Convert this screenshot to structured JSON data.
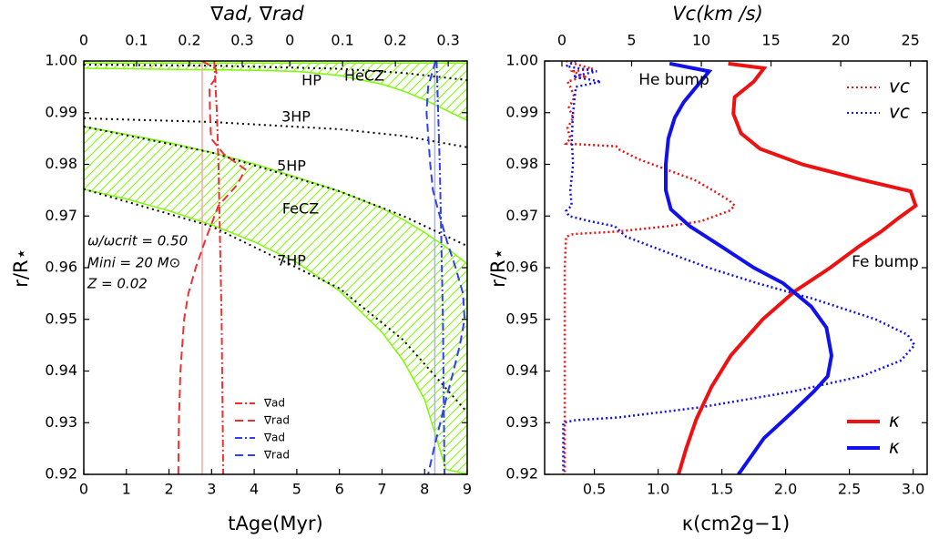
{
  "chart_data": [
    {
      "type": "profile",
      "xlabel": "tAge(Myr)",
      "x2label": "∇ad, ∇rad",
      "ylabel": "r/R⋆",
      "xlim": [
        0,
        9
      ],
      "xticks": [
        0,
        1,
        2,
        3,
        4,
        5,
        6,
        7,
        8,
        9
      ],
      "top_axes": [
        {
          "xlim": [
            0,
            0.39
          ],
          "xticks": [
            0,
            0.1,
            0.2,
            0.3
          ]
        },
        {
          "xlim": [
            0,
            0.336
          ],
          "xticks": [
            0,
            0.1,
            0.2,
            0.3
          ]
        }
      ],
      "ylim": [
        0.92,
        1
      ],
      "yticks": [
        0.92,
        0.93,
        0.94,
        0.95,
        0.96,
        0.97,
        0.98,
        0.99,
        {
          "value": 1,
          "label": "1.00"
        }
      ],
      "regions": [
        {
          "name": "HeCZ",
          "color": "#7cfc00",
          "t": [
            0,
            1,
            2,
            3,
            4,
            5,
            6,
            7,
            7.5,
            8,
            8.5,
            9
          ],
          "upper": [
            0.9996,
            0.9996,
            0.9996,
            0.9996,
            0.9996,
            0.9996,
            0.9996,
            0.9996,
            0.9996,
            0.9996,
            0.9996,
            0.9996
          ],
          "lower": [
            0.9986,
            0.9985,
            0.9984,
            0.9983,
            0.9982,
            0.998,
            0.9972,
            0.9955,
            0.9942,
            0.9925,
            0.9905,
            0.9885
          ]
        },
        {
          "name": "FeCZ",
          "color": "#7cfc00",
          "t": [
            0,
            1,
            2,
            3,
            4,
            5,
            6,
            7,
            7.5,
            8,
            8.5,
            9
          ],
          "upper": [
            0.9873,
            0.9858,
            0.9842,
            0.9823,
            0.9801,
            0.9775,
            0.9748,
            0.9715,
            0.9693,
            0.9668,
            0.964,
            0.9607
          ],
          "lower": [
            0.9752,
            0.9733,
            0.971,
            0.9683,
            0.965,
            0.961,
            0.9555,
            0.9475,
            0.942,
            0.9345,
            0.921,
            0.92
          ]
        }
      ],
      "scale_heights": [
        {
          "name": "HP",
          "t": [
            0,
            3,
            6,
            7.5,
            9
          ],
          "values": [
            0.9993,
            0.9991,
            0.9985,
            0.9977,
            0.9963
          ]
        },
        {
          "name": "3HP",
          "t": [
            0,
            3,
            6,
            7.5,
            9
          ],
          "values": [
            0.9889,
            0.9882,
            0.9868,
            0.9855,
            0.9833
          ]
        },
        {
          "name": "5HP",
          "t": [
            0,
            3,
            6,
            7.5,
            9
          ],
          "values": [
            0.9873,
            0.9823,
            0.9748,
            0.97,
            0.9642
          ]
        },
        {
          "name": "7HP",
          "t": [
            0,
            3,
            6,
            7.5,
            9
          ],
          "values": [
            0.9752,
            0.968,
            0.956,
            0.946,
            0.932
          ]
        }
      ],
      "age_lines": [
        {
          "color": "#f4a8a8",
          "value": 2.78
        },
        {
          "color": "#a8b0f4",
          "value": 8.24
        }
      ],
      "profiles": [
        {
          "name": "∇ad",
          "color": "#f03030",
          "style": "dashdot",
          "axis": "top1",
          "legend": "lower center",
          "r": [
            1,
            0.99,
            0.98,
            0.97,
            0.96,
            0.95,
            0.94,
            0.93,
            0.92
          ],
          "values": [
            0.247,
            0.252,
            0.255,
            0.257,
            0.259,
            0.261,
            0.262,
            0.263,
            0.264
          ]
        },
        {
          "name": "∇rad",
          "color": "#f03030",
          "style": "dashed",
          "axis": "top1",
          "legend": "lower center",
          "r": [
            1,
            0.9985,
            0.997,
            0.995,
            0.99,
            0.985,
            0.982,
            0.979,
            0.976,
            0.972,
            0.968,
            0.965,
            0.96,
            0.955,
            0.95,
            0.94,
            0.93,
            0.92
          ],
          "values": [
            0.224,
            0.25,
            0.252,
            0.238,
            0.239,
            0.241,
            0.265,
            0.306,
            0.29,
            0.255,
            0.24,
            0.229,
            0.212,
            0.198,
            0.19,
            0.183,
            0.18,
            0.179
          ]
        },
        {
          "name": "∇ad",
          "color": "#3040f0",
          "style": "dashdot",
          "axis": "top2",
          "legend": "lower center",
          "r": [
            1,
            0.99,
            0.98,
            0.97,
            0.96,
            0.95,
            0.94,
            0.93,
            0.92
          ],
          "values": [
            0.278,
            0.281,
            0.284,
            0.286,
            0.288,
            0.29,
            0.291,
            0.292,
            0.293
          ]
        },
        {
          "name": "∇rad",
          "color": "#3040f0",
          "style": "dashed",
          "axis": "top2",
          "legend": "lower center",
          "r": [
            1,
            0.995,
            0.99,
            0.98,
            0.975,
            0.97,
            0.965,
            0.96,
            0.955,
            0.95,
            0.945,
            0.94,
            0.935,
            0.93,
            0.925,
            0.92
          ],
          "values": [
            0.276,
            0.262,
            0.259,
            0.266,
            0.271,
            0.284,
            0.298,
            0.314,
            0.328,
            0.331,
            0.322,
            0.31,
            0.297,
            0.285,
            0.273,
            0.262
          ]
        }
      ],
      "annotations": [
        "ω/ωcrit = 0.50",
        "Mini = 20 M⊙",
        "Z = 0.02"
      ]
    },
    {
      "type": "profile",
      "xlabel": "κ(cm2g−1)",
      "x2label": "Vc(km /s)",
      "ylabel": "r/R⋆",
      "xlim": [
        0.11,
        3.11
      ],
      "xticks": [
        0.5,
        {
          "value": 1,
          "label": "1.0"
        },
        1.5,
        {
          "value": 2,
          "label": "2.0"
        },
        2.5,
        {
          "value": 3,
          "label": "3.0"
        }
      ],
      "top_axes": [
        {
          "xlim": [
            -1.24,
            26.2
          ],
          "xticks": [
            0,
            5,
            10,
            15,
            20,
            25
          ]
        }
      ],
      "ylim": [
        0.92,
        1
      ],
      "yticks": [
        0.92,
        0.93,
        0.94,
        0.95,
        0.96,
        0.97,
        0.98,
        0.99,
        {
          "value": 1,
          "label": "1.00"
        }
      ],
      "profiles": [
        {
          "name": "vc",
          "color": "#ee1111",
          "style": "dotted",
          "axis": "top1",
          "legend": "upper right",
          "r": [
            1,
            0.999,
            0.9985,
            0.998,
            0.997,
            0.996,
            0.995,
            0.993,
            0.991,
            0.989,
            0.987,
            0.985,
            0.984,
            0.9835,
            0.983,
            0.981,
            0.979,
            0.977,
            0.975,
            0.973,
            0.972,
            0.971,
            0.969,
            0.968,
            0.967,
            0.9665,
            0.966,
            0.96,
            0.95,
            0.94,
            0.93,
            0.92
          ],
          "values": [
            0.3,
            1.5,
            2.2,
            0.8,
            1.6,
            0.4,
            0.6,
            0.9,
            0.5,
            0.8,
            0.4,
            0.6,
            0.3,
            3.9,
            4,
            5.5,
            7.5,
            9.5,
            10.8,
            12,
            12.4,
            12,
            10,
            7.5,
            4,
            0.8,
            0.3,
            0.2,
            0.2,
            0.2,
            0.2,
            0.2
          ]
        },
        {
          "name": "vc",
          "color": "#1111ee",
          "style": "dotted",
          "axis": "top1",
          "legend": "upper right",
          "r": [
            1,
            0.999,
            0.998,
            0.997,
            0.996,
            0.995,
            0.99,
            0.985,
            0.98,
            0.975,
            0.972,
            0.971,
            0.97,
            0.969,
            0.968,
            0.967,
            0.966,
            0.963,
            0.96,
            0.957,
            0.954,
            0.95,
            0.947,
            0.945,
            0.942,
            0.939,
            0.936,
            0.933,
            0.931,
            0.9305,
            0.93,
            0.92
          ],
          "values": [
            1,
            0.3,
            2.5,
            0.8,
            2.8,
            1,
            0.8,
            0.7,
            0.8,
            0.6,
            0.7,
            0.3,
            0.5,
            2,
            3.8,
            4.2,
            4.6,
            7.5,
            10.5,
            14,
            18,
            22.5,
            24.8,
            25.3,
            24.3,
            21.5,
            16.5,
            10,
            4,
            1,
            0.1,
            0.1
          ]
        },
        {
          "name": "κ",
          "color": "#ee1111",
          "style": "solid",
          "axis": "bottom",
          "legend": "lower right",
          "r": [
            0.9995,
            0.9986,
            0.996,
            0.993,
            0.9898,
            0.986,
            0.983,
            0.98,
            0.977,
            0.9748,
            0.972,
            0.9695,
            0.967,
            0.9642,
            0.96,
            0.9554,
            0.95,
            0.943,
            0.937,
            0.9307,
            0.925,
            0.92
          ],
          "values": [
            1.55,
            1.83,
            1.75,
            1.6,
            1.59,
            1.65,
            1.8,
            2.13,
            2.6,
            2.98,
            3.02,
            2.88,
            2.75,
            2.58,
            2.35,
            2.07,
            1.82,
            1.57,
            1.42,
            1.3,
            1.22,
            1.16
          ]
        },
        {
          "name": "κ",
          "color": "#1111ee",
          "style": "solid",
          "axis": "bottom",
          "legend": "lower right",
          "r": [
            0.9995,
            0.998,
            0.995,
            0.992,
            0.989,
            0.985,
            0.98,
            0.975,
            0.9713,
            0.968,
            0.9642,
            0.96,
            0.957,
            0.9525,
            0.9484,
            0.943,
            0.939,
            0.936,
            0.932,
            0.927,
            0.92
          ],
          "values": [
            1.09,
            1.4,
            1.3,
            1.2,
            1.13,
            1.08,
            1.06,
            1.06,
            1.1,
            1.25,
            1.49,
            1.75,
            1.98,
            2.2,
            2.32,
            2.36,
            2.33,
            2.22,
            2.05,
            1.83,
            1.63
          ]
        }
      ],
      "annotations": [
        "He bump",
        "Fe bump"
      ]
    }
  ]
}
